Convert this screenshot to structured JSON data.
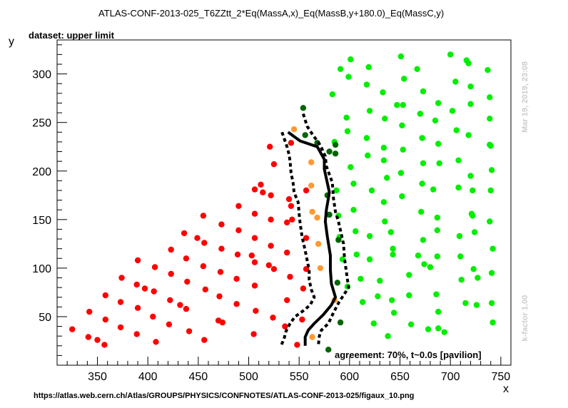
{
  "chart_data": {
    "type": "scatter",
    "title": "ATLAS-CONF-2013-025_T6ZZtt_2*Eq(MassA,x)_Eq(MassB,y+180.0)_Eq(MassC,y)",
    "subtitle": "dataset: upper limit",
    "xlabel": "x",
    "ylabel": "y",
    "xlim": [
      310,
      760
    ],
    "ylim": [
      0,
      335
    ],
    "xticks": [
      350,
      400,
      450,
      500,
      550,
      600,
      650,
      700,
      750
    ],
    "yticks": [
      50,
      100,
      150,
      200,
      250,
      300
    ],
    "grid": false,
    "annotation": "agreement: 70%, t~0.0s [pavilion]",
    "side_label_top": "Mar 19, 2019, 23:08",
    "side_label_bottom": "k-factor 1.00",
    "footer": "https://atlas.web.cern.ch/Atlas/GROUPS/PHYSICS/CONFNOTES/ATLAS-CONF-2013-025/figaux_10.png",
    "colors": {
      "excluded": "#ff0000",
      "allowed": "#00ee00",
      "excluded_border": "#ff9933",
      "allowed_border": "#006600",
      "contour": "#000000",
      "side_labels": "#cccccc"
    },
    "series": [
      {
        "color_key": "excluded",
        "points": [
          [
            325,
            37
          ],
          [
            341,
            29
          ],
          [
            350,
            26
          ],
          [
            357,
            21
          ],
          [
            342,
            55
          ],
          [
            358,
            47
          ],
          [
            358,
            72
          ],
          [
            373,
            39
          ],
          [
            373,
            65
          ],
          [
            374,
            90
          ],
          [
            389,
            32
          ],
          [
            390,
            59
          ],
          [
            389,
            83
          ],
          [
            390,
            108
          ],
          [
            397,
            79
          ],
          [
            405,
            50
          ],
          [
            408,
            24
          ],
          [
            406,
            76
          ],
          [
            407,
            101
          ],
          [
            421,
            42
          ],
          [
            422,
            67
          ],
          [
            423,
            94
          ],
          [
            423,
            119
          ],
          [
            432,
            62
          ],
          [
            436,
            136
          ],
          [
            438,
            58
          ],
          [
            438,
            110
          ],
          [
            439,
            86
          ],
          [
            441,
            35
          ],
          [
            449,
            131
          ],
          [
            456,
            26
          ],
          [
            455,
            154
          ],
          [
            457,
            78
          ],
          [
            455,
            102
          ],
          [
            456,
            126
          ],
          [
            470,
            46
          ],
          [
            471,
            71
          ],
          [
            472,
            96
          ],
          [
            473,
            120
          ],
          [
            473,
            145
          ],
          [
            474,
            44
          ],
          [
            488,
            63
          ],
          [
            488,
            89
          ],
          [
            489,
            114
          ],
          [
            490,
            139
          ],
          [
            490,
            164
          ],
          [
            505,
            32
          ],
          [
            507,
            56
          ],
          [
            506,
            82
          ],
          [
            506,
            106
          ],
          [
            506,
            131
          ],
          [
            506,
            156
          ],
          [
            506,
            181
          ],
          [
            503,
            113
          ],
          [
            512,
            186
          ],
          [
            514,
            178
          ],
          [
            521,
            225
          ],
          [
            520,
            103
          ],
          [
            522,
            123
          ],
          [
            522,
            150
          ],
          [
            522,
            175
          ],
          [
            524,
            49
          ],
          [
            525,
            99
          ],
          [
            525,
            207
          ],
          [
            536,
            40
          ],
          [
            538,
            67
          ],
          [
            538,
            116
          ],
          [
            538,
            147
          ],
          [
            540,
            171
          ],
          [
            541,
            91
          ],
          [
            542,
            164
          ],
          [
            542,
            229
          ],
          [
            553,
            47
          ],
          [
            554,
            79
          ],
          [
            557,
            99
          ],
          [
            557,
            180
          ],
          [
            543,
            150
          ],
          [
            557,
            131
          ],
          [
            548,
            21
          ]
        ]
      },
      {
        "color_key": "allowed",
        "points": [
          [
            583,
            279
          ],
          [
            585,
            230
          ],
          [
            587,
            180
          ],
          [
            589,
            154
          ],
          [
            590,
            132
          ],
          [
            591,
            305
          ],
          [
            593,
            109
          ],
          [
            597,
            255
          ],
          [
            598,
            81
          ],
          [
            598,
            241
          ],
          [
            599,
            297
          ],
          [
            601,
            204
          ],
          [
            601,
            315
          ],
          [
            604,
            187
          ],
          [
            604,
            160
          ],
          [
            606,
            138
          ],
          [
            607,
            114
          ],
          [
            611,
            89
          ],
          [
            613,
            65
          ],
          [
            617,
            234
          ],
          [
            617,
            289
          ],
          [
            618,
            216
          ],
          [
            619,
            307
          ],
          [
            620,
            133
          ],
          [
            620,
            262
          ],
          [
            620,
            109
          ],
          [
            622,
            180
          ],
          [
            624,
            43
          ],
          [
            628,
            71
          ],
          [
            630,
            87
          ],
          [
            633,
            281
          ],
          [
            635,
            254
          ],
          [
            634,
            224
          ],
          [
            634,
            168
          ],
          [
            634,
            211
          ],
          [
            635,
            148
          ],
          [
            637,
            193
          ],
          [
            638,
            30
          ],
          [
            641,
            137
          ],
          [
            643,
            114
          ],
          [
            642,
            67
          ],
          [
            643,
            120
          ],
          [
            644,
            54
          ],
          [
            647,
            268
          ],
          [
            651,
            318
          ],
          [
            654,
            295
          ],
          [
            652,
            174
          ],
          [
            652,
            247
          ],
          [
            651,
            198
          ],
          [
            653,
            268
          ],
          [
            653,
            222
          ],
          [
            659,
            93
          ],
          [
            659,
            72
          ],
          [
            661,
            42
          ],
          [
            667,
            305
          ],
          [
            668,
            113
          ],
          [
            670,
            259
          ],
          [
            672,
            234
          ],
          [
            671,
            158
          ],
          [
            672,
            187
          ],
          [
            673,
            129
          ],
          [
            673,
            208
          ],
          [
            673,
            282
          ],
          [
            674,
            104
          ],
          [
            678,
            37
          ],
          [
            680,
            101
          ],
          [
            683,
            181
          ],
          [
            685,
            252
          ],
          [
            686,
            73
          ],
          [
            687,
            152
          ],
          [
            687,
            139
          ],
          [
            687,
            112
          ],
          [
            688,
            270
          ],
          [
            688,
            228
          ],
          [
            689,
            208
          ],
          [
            688,
            38
          ],
          [
            688,
            55
          ],
          [
            694,
            34
          ],
          [
            700,
            320
          ],
          [
            702,
            262
          ],
          [
            705,
            292
          ],
          [
            706,
            242
          ],
          [
            708,
            183
          ],
          [
            708,
            211
          ],
          [
            709,
            133
          ],
          [
            710,
            112
          ],
          [
            711,
            88
          ],
          [
            715,
            64
          ],
          [
            716,
            314
          ],
          [
            718,
            311
          ],
          [
            720,
            269
          ],
          [
            720,
            287
          ],
          [
            718,
            237
          ],
          [
            720,
            195
          ],
          [
            722,
            180
          ],
          [
            721,
            156
          ],
          [
            722,
            154
          ],
          [
            724,
            137
          ],
          [
            723,
            99
          ],
          [
            726,
            62
          ],
          [
            727,
            90
          ],
          [
            737,
            304
          ],
          [
            739,
            227
          ],
          [
            739,
            276
          ],
          [
            739,
            254
          ],
          [
            741,
            201
          ],
          [
            740,
            180
          ],
          [
            740,
            226
          ],
          [
            739,
            148
          ],
          [
            742,
            120
          ],
          [
            741,
            95
          ],
          [
            741,
            64
          ],
          [
            742,
            44
          ]
        ]
      },
      {
        "color_key": "excluded_border",
        "points": [
          [
            545,
            243
          ],
          [
            562,
            209
          ],
          [
            562,
            185
          ],
          [
            563,
            158
          ],
          [
            568,
            152
          ],
          [
            569,
            125
          ],
          [
            571,
            100
          ],
          [
            585,
            67
          ],
          [
            563,
            29
          ]
        ]
      },
      {
        "color_key": "allowed_border",
        "points": [
          [
            554,
            265
          ],
          [
            556,
            237
          ],
          [
            568,
            229
          ],
          [
            586,
            227
          ],
          [
            580,
            220
          ],
          [
            586,
            218
          ],
          [
            578,
            175
          ],
          [
            580,
            155
          ],
          [
            589,
            129
          ],
          [
            588,
            85
          ],
          [
            591,
            44
          ],
          [
            579,
            16
          ]
        ]
      }
    ],
    "contours": [
      {
        "style": "solid",
        "points": [
          [
            539,
            240
          ],
          [
            551,
            231
          ],
          [
            568,
            225
          ],
          [
            575,
            212
          ],
          [
            575,
            202
          ],
          [
            580,
            178
          ],
          [
            577,
            160
          ],
          [
            576,
            148
          ],
          [
            578,
            132
          ],
          [
            581,
            113
          ],
          [
            581,
            98
          ],
          [
            582,
            84
          ],
          [
            586,
            70
          ],
          [
            582,
            62
          ],
          [
            574,
            52
          ],
          [
            565,
            43
          ],
          [
            559,
            36
          ],
          [
            556,
            29
          ],
          [
            556,
            20
          ]
        ]
      },
      {
        "style": "dashed",
        "points": [
          [
            554,
            259
          ],
          [
            558,
            246
          ],
          [
            563,
            238
          ],
          [
            570,
            228
          ],
          [
            573,
            222
          ],
          [
            576,
            215
          ],
          [
            577,
            205
          ],
          [
            583,
            188
          ],
          [
            584,
            172
          ],
          [
            586,
            158
          ],
          [
            589,
            148
          ],
          [
            594,
            125
          ],
          [
            595,
            110
          ],
          [
            597,
            95
          ],
          [
            599,
            80
          ],
          [
            594,
            72
          ],
          [
            589,
            64
          ],
          [
            584,
            54
          ],
          [
            579,
            43
          ],
          [
            572,
            36
          ],
          [
            570,
            30
          ],
          [
            569,
            20
          ]
        ]
      },
      {
        "style": "dashed",
        "points": [
          [
            533,
            240
          ],
          [
            538,
            225
          ],
          [
            540,
            217
          ],
          [
            541,
            210
          ],
          [
            542,
            198
          ],
          [
            544,
            188
          ],
          [
            545,
            178
          ],
          [
            549,
            168
          ],
          [
            550,
            156
          ],
          [
            551,
            146
          ],
          [
            553,
            132
          ],
          [
            556,
            118
          ],
          [
            558,
            108
          ],
          [
            560,
            98
          ],
          [
            560,
            88
          ],
          [
            562,
            78
          ],
          [
            565,
            70
          ],
          [
            561,
            62
          ],
          [
            554,
            56
          ],
          [
            546,
            50
          ],
          [
            541,
            43
          ],
          [
            537,
            35
          ],
          [
            535,
            27
          ],
          [
            532,
            20
          ]
        ]
      }
    ]
  }
}
